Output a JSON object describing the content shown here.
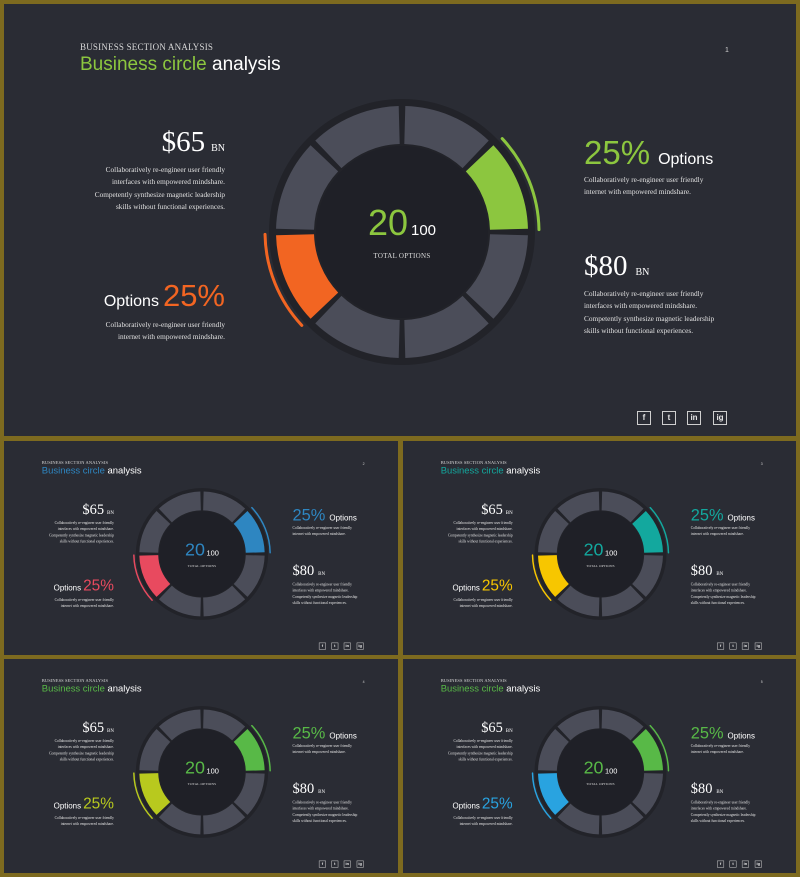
{
  "slides": [
    {
      "id": "s1",
      "page": "1",
      "colors": {
        "c1": "#8cc63f",
        "c2": "#f26522",
        "c3": "#8cc63f"
      }
    },
    {
      "id": "s2",
      "page": "2",
      "colors": {
        "c1": "#2e86c1",
        "c2": "#e84a5f",
        "c3": "#2e86c1"
      }
    },
    {
      "id": "s3",
      "page": "3",
      "colors": {
        "c1": "#13a89e",
        "c2": "#f7c600",
        "c3": "#13a89e"
      }
    },
    {
      "id": "s4",
      "page": "4",
      "colors": {
        "c1": "#58b947",
        "c2": "#b8c91e",
        "c3": "#58b947"
      }
    },
    {
      "id": "s5",
      "page": "5",
      "colors": {
        "c1": "#58b947",
        "c2": "#29a3e0",
        "c3": "#58b947"
      }
    }
  ],
  "content": {
    "kicker": "BUSINESS SECTION ANALYSIS",
    "title_accent": "Business circle",
    "title_rest": "analysis",
    "left_value": "$65",
    "left_unit": "BN",
    "left_text": [
      "Collaboratively re-engineer user friendly",
      "interfaces with empowered mindshare.",
      "Competently synthesize magnetic leadership",
      "skills without functional experiences."
    ],
    "left_option_label": "Options",
    "left_option_pct": "25%",
    "left_option_text": [
      "Collaboratively re-engineer user friendly",
      "internet with empowered mindshare."
    ],
    "right_option_pct": "25%",
    "right_option_label": "Options",
    "right_option_text": [
      "Collaboratively re-engineer user friendly",
      "internet with empowered mindshare."
    ],
    "right_value": "$80",
    "right_unit": "BN",
    "right_text": [
      "Collaboratively re-engineer user friendly",
      "interfaces with empowered mindshare.",
      "Competently synthesize magnetic leadership",
      "skills without functional experiences."
    ],
    "center_value": "20",
    "center_total": "100",
    "center_label": "TOTAL OPTIONS",
    "social": [
      "f",
      "t",
      "in",
      "ig"
    ],
    "social_icons": [
      "facebook-icon",
      "twitter-icon",
      "linkedin-icon",
      "instagram-icon"
    ]
  },
  "palette": {
    "background": "#2a2c34",
    "frame": "#7d6a1f",
    "segment": "#4b4d59",
    "hub": "#1f2027",
    "ring": "#222329"
  }
}
